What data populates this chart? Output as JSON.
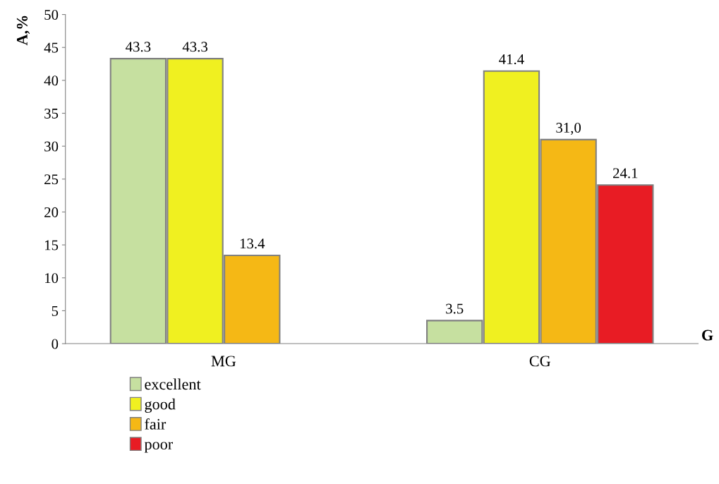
{
  "chart_data": {
    "type": "bar",
    "xlabel": "G",
    "ylabel": "A,%",
    "categories": [
      "MG",
      "CG"
    ],
    "series": [
      {
        "name": "excellent",
        "color": "#c6e0a0",
        "values": [
          43.3,
          3.5
        ],
        "value_labels": [
          "43.3",
          "3.5"
        ]
      },
      {
        "name": "good",
        "color": "#f0f020",
        "values": [
          43.3,
          41.4
        ],
        "value_labels": [
          "43.3",
          "41.4"
        ]
      },
      {
        "name": "fair",
        "color": "#f5b815",
        "values": [
          13.4,
          31.0
        ],
        "value_labels": [
          "13.4",
          "31,0"
        ]
      },
      {
        "name": "poor",
        "color": "#e81c24",
        "values": [
          null,
          24.1
        ],
        "value_labels": [
          null,
          "24.1"
        ]
      }
    ],
    "ylim": [
      0,
      50
    ],
    "yticks": [
      0,
      5,
      10,
      15,
      20,
      25,
      30,
      35,
      40,
      45,
      50
    ],
    "grid": false,
    "legend": "bottom left"
  }
}
